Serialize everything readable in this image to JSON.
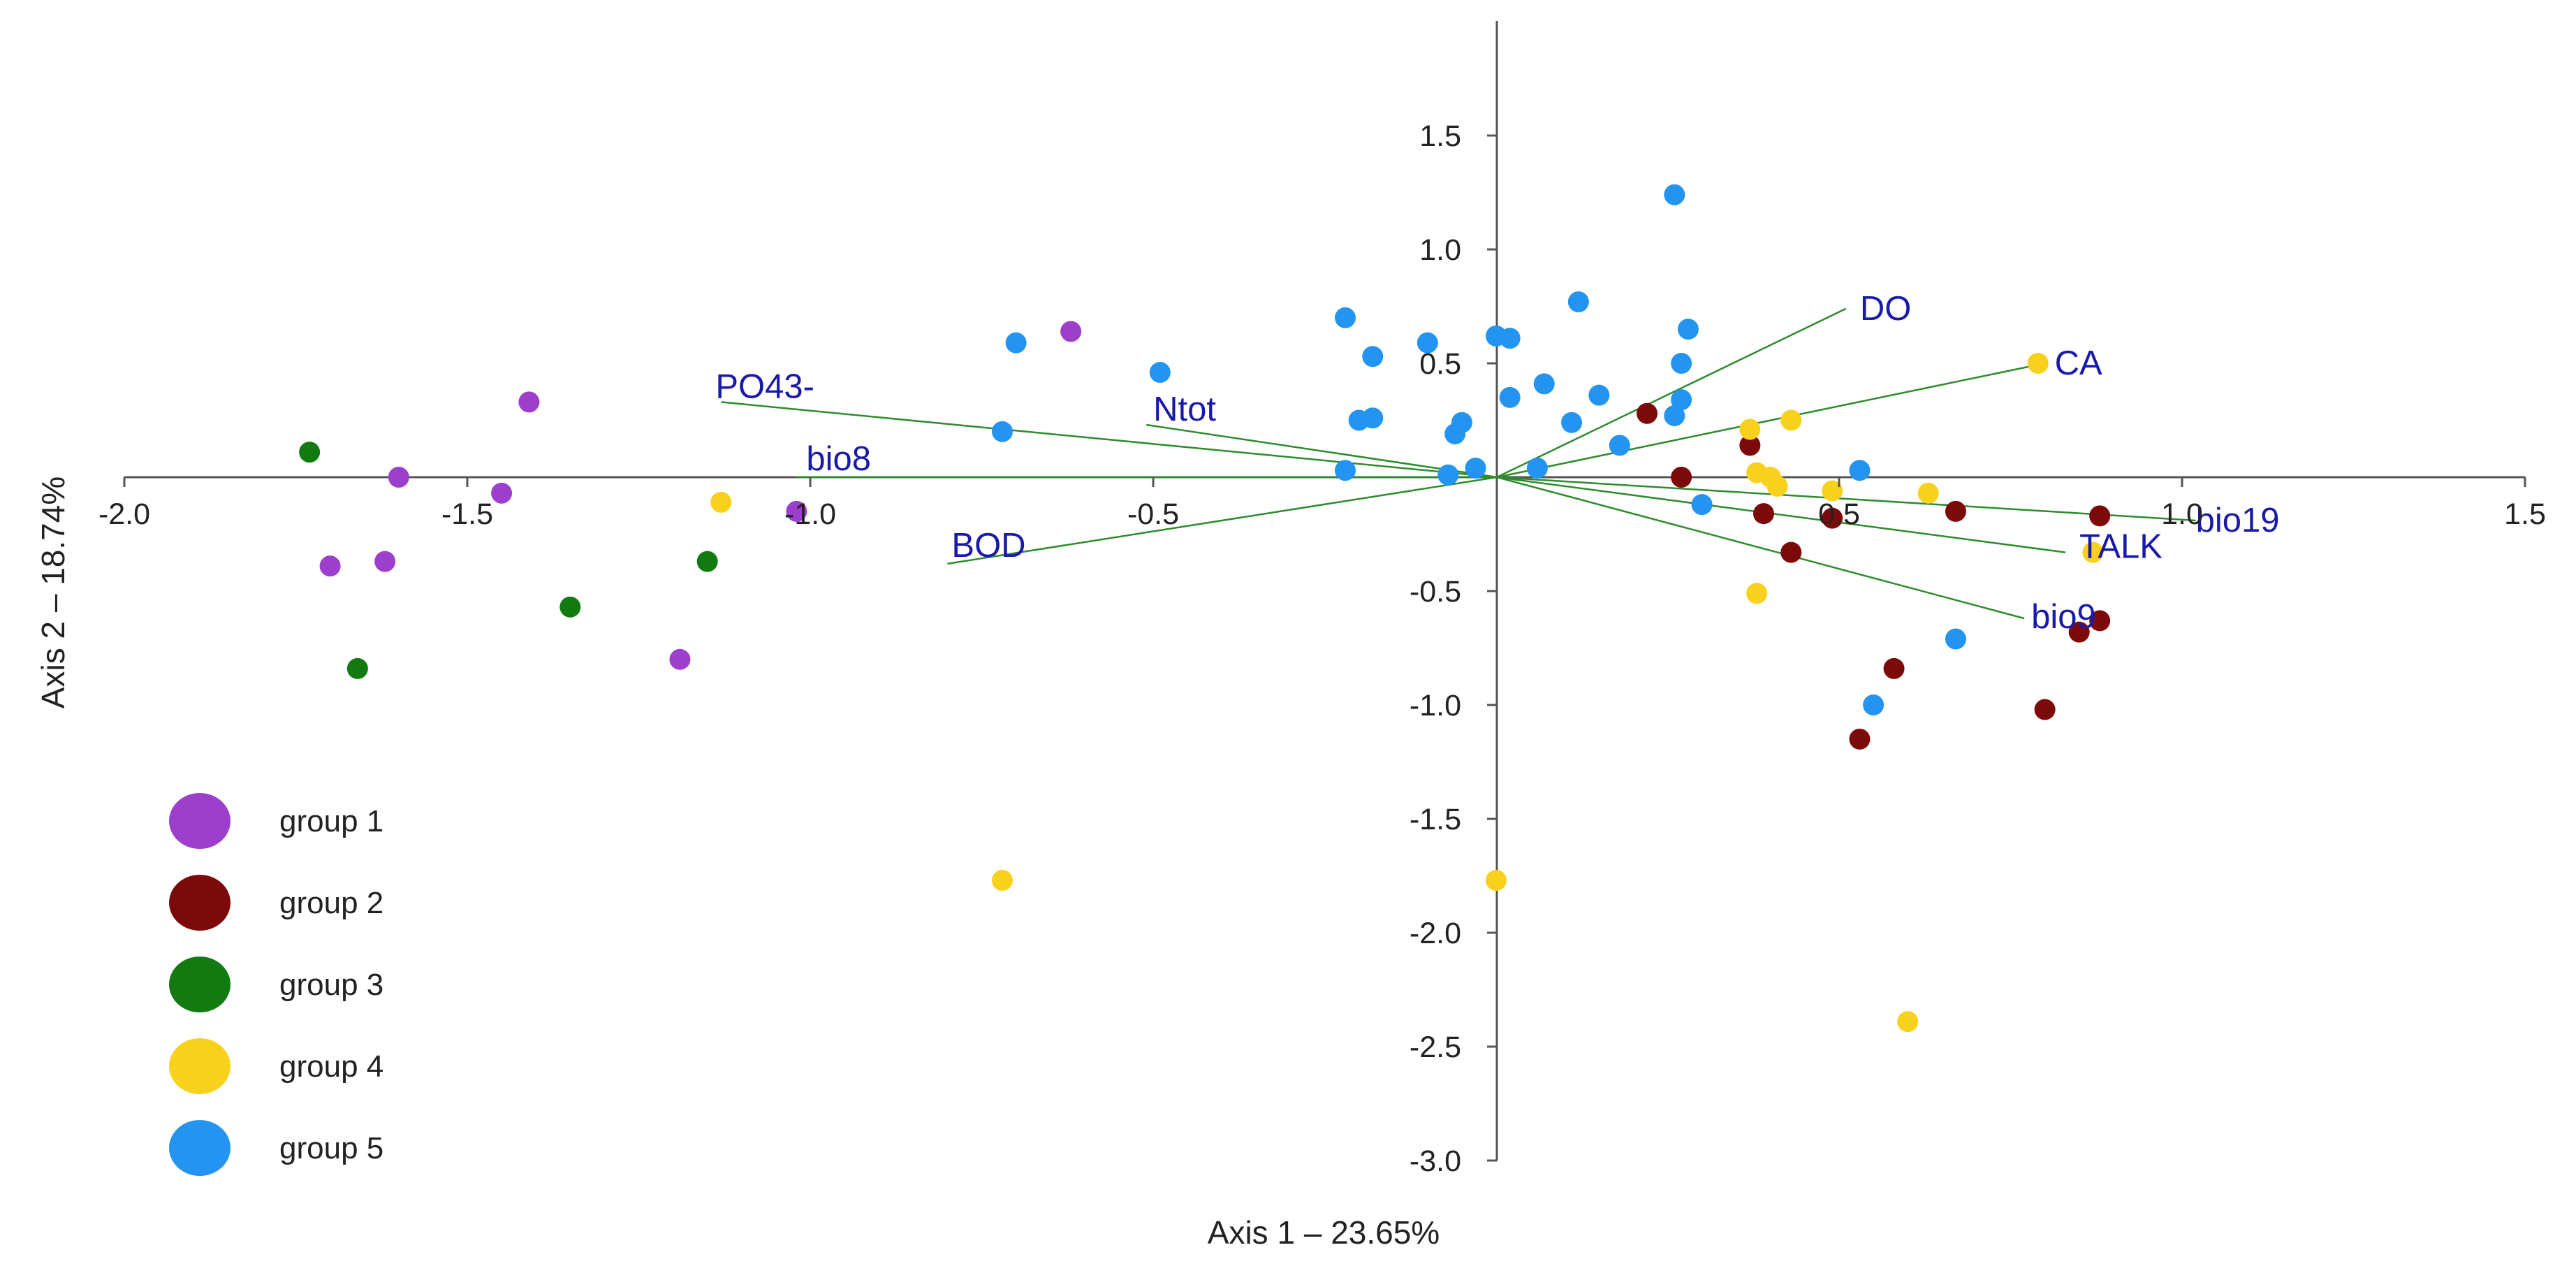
{
  "chart_data": {
    "type": "scatter",
    "subtype": "PCA biplot",
    "title": "",
    "xlabel": "Axis 1 – 23.65%",
    "ylabel": "Axis 2 – 18.74%",
    "xlim": [
      -2.0,
      1.5
    ],
    "ylim": [
      -3.0,
      2.0
    ],
    "xticks": [
      -2.0,
      -1.5,
      -1.0,
      -0.5,
      0.5,
      1.0,
      1.5
    ],
    "xtick_labels": [
      "-2.0",
      "-1.5",
      "-1.0",
      "-0.5",
      "0.5",
      "1.0",
      "1.5"
    ],
    "yticks": [
      1.5,
      1.0,
      0.5,
      -0.5,
      -1.0,
      -1.5,
      -2.0,
      -2.5,
      -3.0
    ],
    "ytick_labels": [
      "1.5",
      "1.0",
      "0.5",
      "-0.5",
      "-1.0",
      "-1.5",
      "-2.0",
      "-2.5",
      "-3.0"
    ],
    "grid": false,
    "legend_position": "bottom-left",
    "vector_color": "#2e8b2e",
    "label_color": "#1a1aa8",
    "axis_color": "#555555",
    "vectors": [
      {
        "name": "PO43-",
        "x": -1.13,
        "y": 0.33
      },
      {
        "name": "Ntot",
        "x": -0.51,
        "y": 0.23
      },
      {
        "name": "bio8",
        "x": -1.02,
        "y": 0.0
      },
      {
        "name": "BOD",
        "x": -0.8,
        "y": -0.38
      },
      {
        "name": "DO",
        "x": 0.51,
        "y": 0.74
      },
      {
        "name": "CA",
        "x": 0.8,
        "y": 0.5
      },
      {
        "name": "bio19",
        "x": 1.02,
        "y": -0.19
      },
      {
        "name": "TALK",
        "x": 0.83,
        "y": -0.33
      },
      {
        "name": "bio9",
        "x": 0.77,
        "y": -0.62
      }
    ],
    "series": [
      {
        "name": "group 1",
        "color": "#9b3fcc",
        "points": [
          [
            -1.41,
            0.33
          ],
          [
            -1.6,
            0.0
          ],
          [
            -1.45,
            -0.07
          ],
          [
            -1.7,
            -0.39
          ],
          [
            -1.62,
            -0.37
          ],
          [
            -1.19,
            -0.8
          ],
          [
            -1.02,
            -0.15
          ],
          [
            -0.62,
            0.64
          ]
        ]
      },
      {
        "name": "group 2",
        "color": "#7d0a0a",
        "points": [
          [
            0.22,
            0.28
          ],
          [
            0.37,
            0.14
          ],
          [
            0.27,
            0.0
          ],
          [
            0.39,
            -0.16
          ],
          [
            0.43,
            -0.33
          ],
          [
            0.49,
            -0.18
          ],
          [
            0.67,
            -0.15
          ],
          [
            0.88,
            -0.17
          ],
          [
            0.88,
            -0.63
          ],
          [
            0.85,
            -0.68
          ],
          [
            0.58,
            -0.84
          ],
          [
            0.8,
            -1.02
          ],
          [
            0.53,
            -1.15
          ]
        ]
      },
      {
        "name": "group 3",
        "color": "#117a11",
        "points": [
          [
            -1.73,
            0.11
          ],
          [
            -1.66,
            -0.84
          ],
          [
            -1.35,
            -0.57
          ],
          [
            -1.15,
            -0.37
          ]
        ]
      },
      {
        "name": "group 4",
        "color": "#f7d11b",
        "points": [
          [
            -1.13,
            -0.11
          ],
          [
            -0.72,
            -1.77
          ],
          [
            0.0,
            -1.77
          ],
          [
            0.37,
            0.21
          ],
          [
            0.43,
            0.25
          ],
          [
            0.38,
            0.02
          ],
          [
            0.4,
            0.0
          ],
          [
            0.41,
            -0.04
          ],
          [
            0.49,
            -0.06
          ],
          [
            0.63,
            -0.07
          ],
          [
            0.38,
            -0.51
          ],
          [
            0.79,
            0.5
          ],
          [
            0.87,
            -0.33
          ],
          [
            0.6,
            -2.39
          ]
        ]
      },
      {
        "name": "group 5",
        "color": "#2394ef",
        "points": [
          [
            0.26,
            1.24
          ],
          [
            -0.22,
            0.7
          ],
          [
            0.12,
            0.77
          ],
          [
            0.28,
            0.65
          ],
          [
            -0.7,
            0.59
          ],
          [
            -0.1,
            0.59
          ],
          [
            0.0,
            0.62
          ],
          [
            0.02,
            0.61
          ],
          [
            -0.18,
            0.53
          ],
          [
            0.27,
            0.5
          ],
          [
            -0.49,
            0.46
          ],
          [
            0.07,
            0.41
          ],
          [
            0.02,
            0.35
          ],
          [
            0.15,
            0.36
          ],
          [
            0.27,
            0.34
          ],
          [
            -0.18,
            0.26
          ],
          [
            -0.2,
            0.25
          ],
          [
            0.11,
            0.24
          ],
          [
            0.26,
            0.27
          ],
          [
            -0.05,
            0.24
          ],
          [
            -0.06,
            0.19
          ],
          [
            -0.72,
            0.2
          ],
          [
            0.18,
            0.14
          ],
          [
            -0.22,
            0.03
          ],
          [
            -0.07,
            0.01
          ],
          [
            -0.03,
            0.04
          ],
          [
            0.06,
            0.04
          ],
          [
            0.53,
            0.03
          ],
          [
            0.3,
            -0.12
          ],
          [
            0.67,
            -0.71
          ],
          [
            0.55,
            -1.0
          ]
        ]
      }
    ]
  }
}
